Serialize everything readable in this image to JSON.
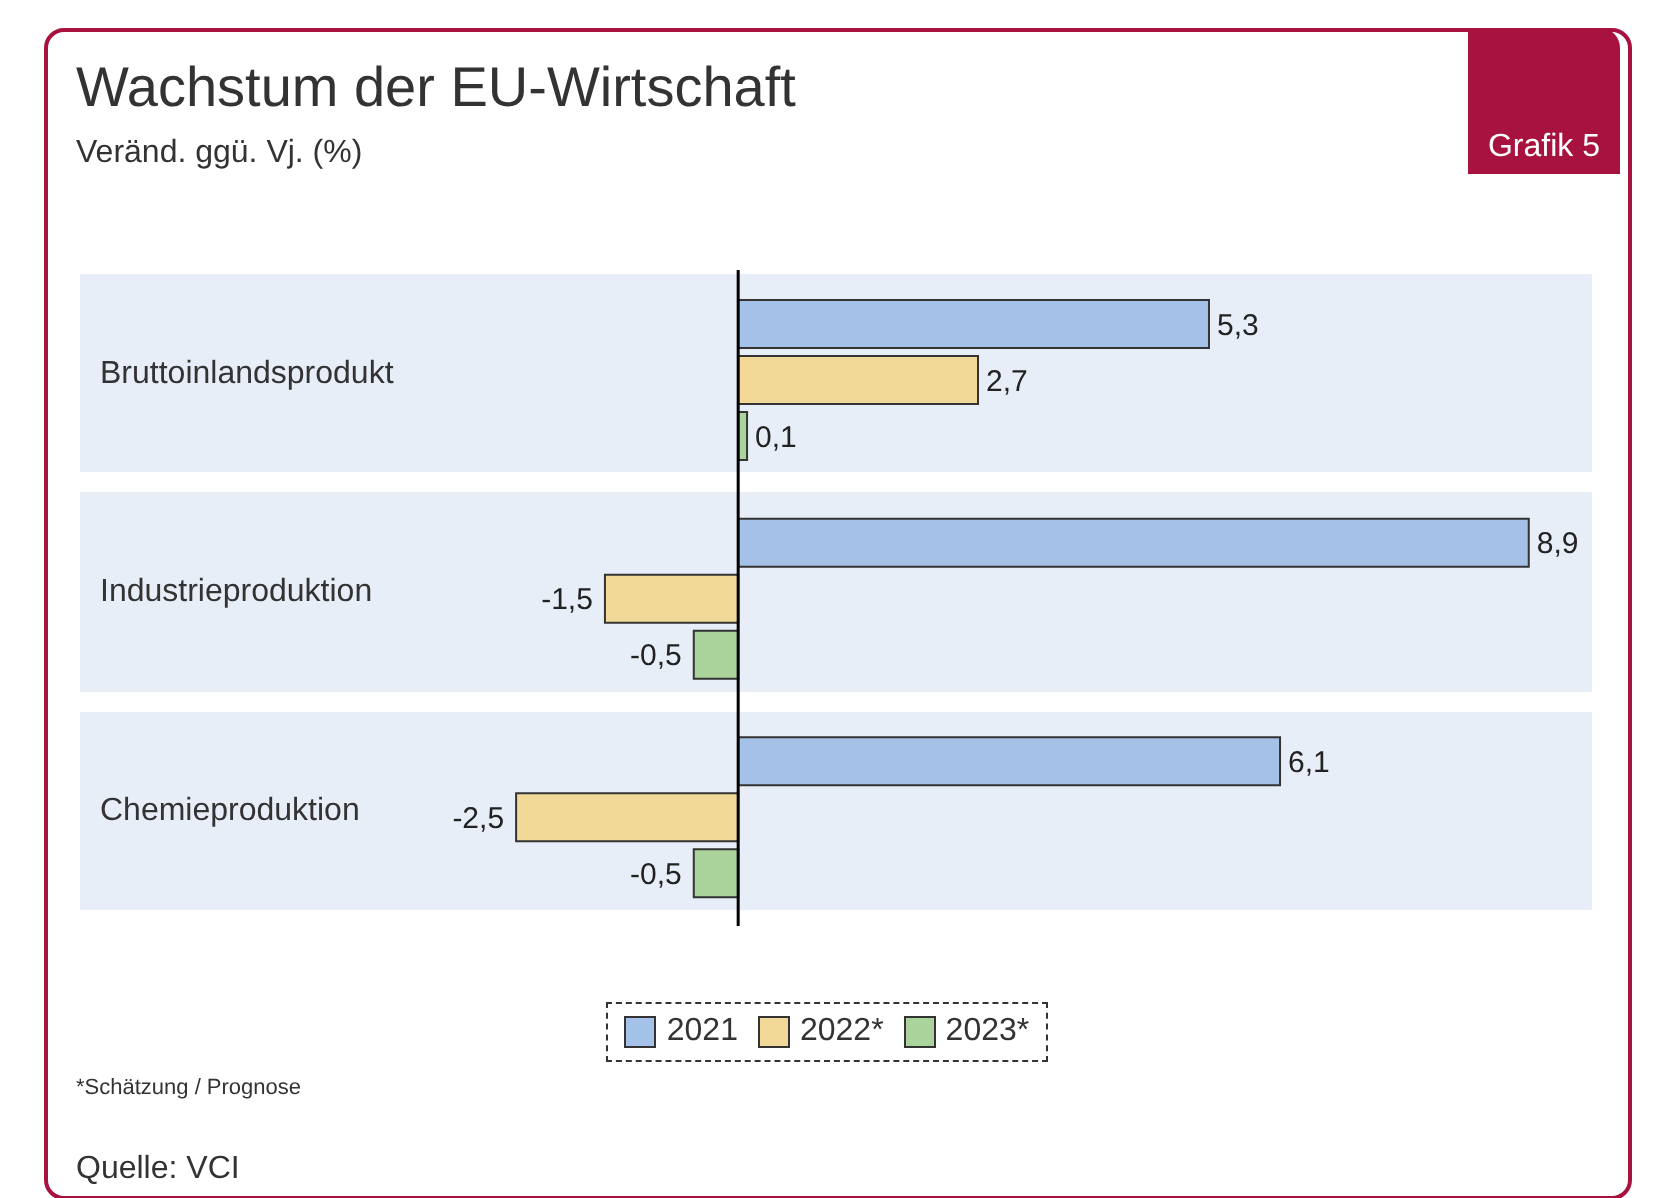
{
  "chart_data": {
    "type": "bar",
    "orientation": "horizontal",
    "title": "Wachstum der EU-Wirtschaft",
    "subtitle": "Veränd. ggü. Vj. (%)",
    "categories": [
      "Bruttoinlandsprodukt",
      "Industrieproduktion",
      "Chemieproduktion"
    ],
    "series": [
      {
        "name": "2021",
        "color": "#a4c2e8",
        "values": [
          5.3,
          8.9,
          6.1
        ],
        "value_labels": [
          "5,3",
          "8,9",
          "6,1"
        ]
      },
      {
        "name": "2022*",
        "color": "#f3d998",
        "values": [
          2.7,
          -1.5,
          -2.5
        ],
        "value_labels": [
          "2,7",
          "-1,5",
          "-2,5"
        ]
      },
      {
        "name": "2023*",
        "color": "#a9d39b",
        "values": [
          0.1,
          -0.5,
          -0.5
        ],
        "value_labels": [
          "0,1",
          "-0,5",
          "-0,5"
        ]
      }
    ],
    "legend": "bottom",
    "annotations": [
      "Grafik 5",
      "*Schätzung / Prognose",
      "Quelle: VCI"
    ]
  }
}
